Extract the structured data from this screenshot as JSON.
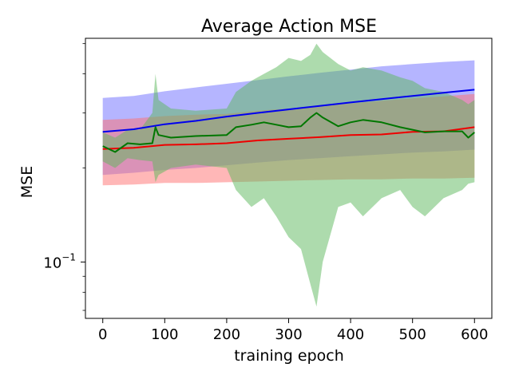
{
  "chart_data": {
    "type": "line",
    "title": "Average Action MSE",
    "xlabel": "training epoch",
    "ylabel": "MSE",
    "xlim": [
      -28,
      628
    ],
    "ylim": [
      0.066,
      0.52
    ],
    "yscale": "log",
    "grid": false,
    "legend": "none",
    "x_ticks": [
      {
        "value": 0,
        "label": "0"
      },
      {
        "value": 100,
        "label": "100"
      },
      {
        "value": 200,
        "label": "200"
      },
      {
        "value": 300,
        "label": "300"
      },
      {
        "value": 400,
        "label": "400"
      },
      {
        "value": 500,
        "label": "500"
      },
      {
        "value": 600,
        "label": "600"
      }
    ],
    "y_ticks": [
      {
        "value": 0.1,
        "label_base": "10",
        "label_exp": "−1"
      }
    ],
    "series": [
      {
        "color": "#0000ee",
        "band_color": "#6b6bff",
        "points": [
          {
            "x": 0,
            "y": 0.261,
            "lo": 0.19,
            "hi": 0.335
          },
          {
            "x": 50,
            "y": 0.266,
            "lo": 0.193,
            "hi": 0.34
          },
          {
            "x": 100,
            "y": 0.276,
            "lo": 0.197,
            "hi": 0.352
          },
          {
            "x": 150,
            "y": 0.283,
            "lo": 0.2,
            "hi": 0.362
          },
          {
            "x": 200,
            "y": 0.292,
            "lo": 0.204,
            "hi": 0.372
          },
          {
            "x": 250,
            "y": 0.3,
            "lo": 0.208,
            "hi": 0.382
          },
          {
            "x": 300,
            "y": 0.308,
            "lo": 0.212,
            "hi": 0.393
          },
          {
            "x": 350,
            "y": 0.316,
            "lo": 0.215,
            "hi": 0.403
          },
          {
            "x": 400,
            "y": 0.324,
            "lo": 0.218,
            "hi": 0.413
          },
          {
            "x": 450,
            "y": 0.332,
            "lo": 0.221,
            "hi": 0.423
          },
          {
            "x": 500,
            "y": 0.34,
            "lo": 0.224,
            "hi": 0.43
          },
          {
            "x": 550,
            "y": 0.348,
            "lo": 0.226,
            "hi": 0.437
          },
          {
            "x": 600,
            "y": 0.356,
            "lo": 0.229,
            "hi": 0.442
          }
        ]
      },
      {
        "color": "#ee0000",
        "band_color": "#ff7070",
        "points": [
          {
            "x": 0,
            "y": 0.23,
            "lo": 0.176,
            "hi": 0.285
          },
          {
            "x": 50,
            "y": 0.232,
            "lo": 0.177,
            "hi": 0.288
          },
          {
            "x": 100,
            "y": 0.237,
            "lo": 0.179,
            "hi": 0.293
          },
          {
            "x": 150,
            "y": 0.238,
            "lo": 0.179,
            "hi": 0.296
          },
          {
            "x": 200,
            "y": 0.24,
            "lo": 0.18,
            "hi": 0.298
          },
          {
            "x": 250,
            "y": 0.245,
            "lo": 0.181,
            "hi": 0.305
          },
          {
            "x": 300,
            "y": 0.248,
            "lo": 0.182,
            "hi": 0.31
          },
          {
            "x": 350,
            "y": 0.251,
            "lo": 0.183,
            "hi": 0.316
          },
          {
            "x": 400,
            "y": 0.255,
            "lo": 0.184,
            "hi": 0.322
          },
          {
            "x": 450,
            "y": 0.256,
            "lo": 0.184,
            "hi": 0.328
          },
          {
            "x": 500,
            "y": 0.261,
            "lo": 0.185,
            "hi": 0.334
          },
          {
            "x": 550,
            "y": 0.262,
            "lo": 0.185,
            "hi": 0.339
          },
          {
            "x": 600,
            "y": 0.27,
            "lo": 0.186,
            "hi": 0.345
          }
        ]
      },
      {
        "color": "#007700",
        "band_color": "#5cb85c",
        "points": [
          {
            "x": 0,
            "y": 0.235,
            "lo": 0.21,
            "hi": 0.26
          },
          {
            "x": 20,
            "y": 0.225,
            "lo": 0.2,
            "hi": 0.25
          },
          {
            "x": 40,
            "y": 0.24,
            "lo": 0.215,
            "hi": 0.265
          },
          {
            "x": 60,
            "y": 0.238,
            "lo": 0.212,
            "hi": 0.265
          },
          {
            "x": 80,
            "y": 0.24,
            "lo": 0.21,
            "hi": 0.3
          },
          {
            "x": 85,
            "y": 0.27,
            "lo": 0.18,
            "hi": 0.4
          },
          {
            "x": 90,
            "y": 0.255,
            "lo": 0.19,
            "hi": 0.33
          },
          {
            "x": 110,
            "y": 0.25,
            "lo": 0.2,
            "hi": 0.31
          },
          {
            "x": 150,
            "y": 0.253,
            "lo": 0.205,
            "hi": 0.305
          },
          {
            "x": 200,
            "y": 0.255,
            "lo": 0.2,
            "hi": 0.31
          },
          {
            "x": 215,
            "y": 0.27,
            "lo": 0.17,
            "hi": 0.35
          },
          {
            "x": 240,
            "y": 0.275,
            "lo": 0.15,
            "hi": 0.38
          },
          {
            "x": 260,
            "y": 0.28,
            "lo": 0.16,
            "hi": 0.4
          },
          {
            "x": 280,
            "y": 0.275,
            "lo": 0.14,
            "hi": 0.42
          },
          {
            "x": 300,
            "y": 0.27,
            "lo": 0.12,
            "hi": 0.45
          },
          {
            "x": 320,
            "y": 0.272,
            "lo": 0.11,
            "hi": 0.44
          },
          {
            "x": 335,
            "y": 0.29,
            "lo": 0.085,
            "hi": 0.46
          },
          {
            "x": 345,
            "y": 0.3,
            "lo": 0.072,
            "hi": 0.5
          },
          {
            "x": 355,
            "y": 0.29,
            "lo": 0.1,
            "hi": 0.47
          },
          {
            "x": 380,
            "y": 0.272,
            "lo": 0.15,
            "hi": 0.43
          },
          {
            "x": 400,
            "y": 0.28,
            "lo": 0.155,
            "hi": 0.41
          },
          {
            "x": 420,
            "y": 0.285,
            "lo": 0.14,
            "hi": 0.42
          },
          {
            "x": 450,
            "y": 0.28,
            "lo": 0.16,
            "hi": 0.41
          },
          {
            "x": 480,
            "y": 0.27,
            "lo": 0.17,
            "hi": 0.39
          },
          {
            "x": 500,
            "y": 0.265,
            "lo": 0.15,
            "hi": 0.38
          },
          {
            "x": 520,
            "y": 0.26,
            "lo": 0.14,
            "hi": 0.36
          },
          {
            "x": 550,
            "y": 0.262,
            "lo": 0.16,
            "hi": 0.35
          },
          {
            "x": 580,
            "y": 0.262,
            "lo": 0.17,
            "hi": 0.33
          },
          {
            "x": 590,
            "y": 0.25,
            "lo": 0.178,
            "hi": 0.32
          },
          {
            "x": 600,
            "y": 0.26,
            "lo": 0.18,
            "hi": 0.33
          }
        ]
      }
    ]
  }
}
